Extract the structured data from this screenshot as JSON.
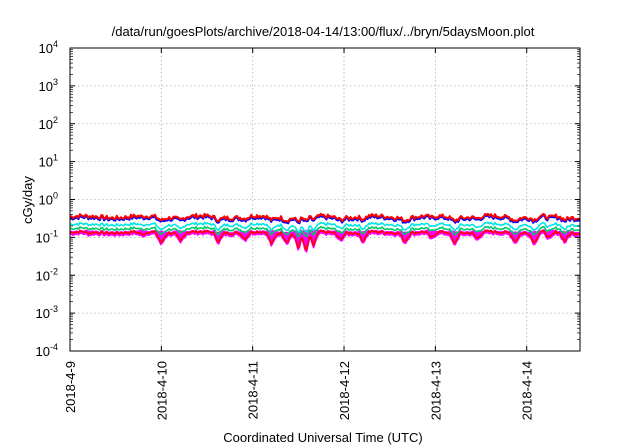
{
  "chart_data": {
    "type": "area",
    "title": "/data/run/goesPlots/archive/2018-04-14/13:00/flux/../bryn/5daysMoon.plot",
    "xlabel": "Coordinated Universal Time (UTC)",
    "ylabel": "cGy/day",
    "yscale": "log",
    "ylim": [
      0.0001,
      10000
    ],
    "xlim": [
      "2018-04-09T00:00",
      "2018-04-14T14:00"
    ],
    "grid": true,
    "x_ticks": [
      "2018-4-9",
      "2018-4-10",
      "2018-4-11",
      "2018-4-12",
      "2018-4-13",
      "2018-4-14"
    ],
    "y_ticks": [
      {
        "value": 0.0001,
        "base": "10",
        "exp": "-4"
      },
      {
        "value": 0.001,
        "base": "10",
        "exp": "-3"
      },
      {
        "value": 0.01,
        "base": "10",
        "exp": "-2"
      },
      {
        "value": 0.1,
        "base": "10",
        "exp": "-1"
      },
      {
        "value": 1,
        "base": "10",
        "exp": "0"
      },
      {
        "value": 10,
        "base": "10",
        "exp": "1"
      },
      {
        "value": 100,
        "base": "10",
        "exp": "2"
      },
      {
        "value": 1000,
        "base": "10",
        "exp": "3"
      },
      {
        "value": 10000,
        "base": "10",
        "exp": "4"
      }
    ],
    "series_colors": [
      "#ff00ff",
      "#ff0000",
      "#00cc66",
      "#00e5e5",
      "#0000ff",
      "#ff0000"
    ],
    "series": [
      {
        "color": "#ff00ff",
        "fill": true,
        "level": 0.12
      },
      {
        "color": "#ff0000",
        "level": 0.135
      },
      {
        "color": "#00cc66",
        "level": 0.17
      },
      {
        "color": "#00e5e5",
        "level": 0.22
      },
      {
        "color": "#0000ff",
        "level": 0.32
      },
      {
        "color": "#ff0000",
        "level": 0.35
      }
    ],
    "dips": [
      {
        "x": "2018-04-09T05:00",
        "min": 0.11
      },
      {
        "x": "2018-04-09T19:00",
        "min": 0.1
      },
      {
        "x": "2018-04-10T00:00",
        "min": 0.06
      },
      {
        "x": "2018-04-10T05:00",
        "min": 0.07
      },
      {
        "x": "2018-04-10T15:00",
        "min": 0.07
      },
      {
        "x": "2018-04-10T22:00",
        "min": 0.08
      },
      {
        "x": "2018-04-11T05:00",
        "min": 0.055
      },
      {
        "x": "2018-04-11T09:00",
        "min": 0.07
      },
      {
        "x": "2018-04-11T12:00",
        "min": 0.045
      },
      {
        "x": "2018-04-11T14:00",
        "min": 0.03
      },
      {
        "x": "2018-04-11T16:00",
        "min": 0.05
      },
      {
        "x": "2018-04-11T23:00",
        "min": 0.08
      },
      {
        "x": "2018-04-12T05:00",
        "min": 0.07
      },
      {
        "x": "2018-04-12T16:00",
        "min": 0.07
      },
      {
        "x": "2018-04-12T23:00",
        "min": 0.08
      },
      {
        "x": "2018-04-13T05:00",
        "min": 0.06
      },
      {
        "x": "2018-04-13T11:00",
        "min": 0.08
      },
      {
        "x": "2018-04-13T21:00",
        "min": 0.07
      },
      {
        "x": "2018-04-14T02:00",
        "min": 0.06
      },
      {
        "x": "2018-04-14T06:00",
        "min": 0.08
      },
      {
        "x": "2018-04-14T10:00",
        "min": 0.07
      }
    ]
  }
}
